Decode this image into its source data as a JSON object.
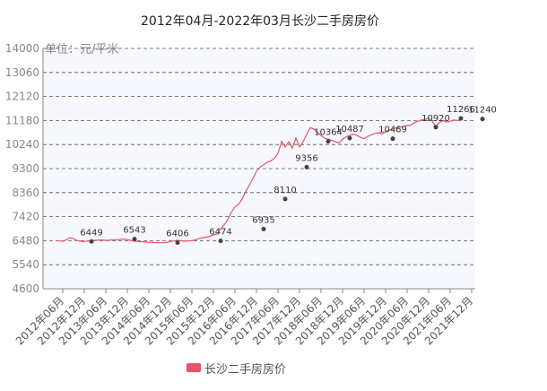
{
  "chart_data": {
    "type": "line",
    "title": "2012年04月-2022年03月长沙二手房房价",
    "unit_label": "单位：元/平米",
    "ylim": [
      4600,
      14000
    ],
    "y_ticks": [
      4600,
      5540,
      6480,
      7420,
      8360,
      9300,
      10240,
      11180,
      12120,
      13060,
      14000
    ],
    "x_tick_labels": [
      "2012年06月",
      "2012年12月",
      "2013年06月",
      "2013年12月",
      "2014年06月",
      "2014年12月",
      "2015年06月",
      "2015年12月",
      "2016年06月",
      "2016年12月",
      "2017年06月",
      "2017年12月",
      "2018年06月",
      "2018年12月",
      "2019年06月",
      "2019年12月",
      "2020年06月",
      "2020年12月",
      "2021年06月",
      "2021年12月"
    ],
    "grid": true,
    "legend_position": "bottom",
    "series": [
      {
        "name": "长沙二手房房价",
        "color": "#e8526a",
        "monthly": [
          6480,
          6470,
          6460,
          6520,
          6600,
          6560,
          6490,
          6460,
          6449,
          6470,
          6490,
          6500,
          6500,
          6510,
          6490,
          6500,
          6510,
          6520,
          6530,
          6543,
          6520,
          6490,
          6460,
          6450,
          6440,
          6430,
          6420,
          6410,
          6406,
          6400,
          6400,
          6410,
          6450,
          6470,
          6500,
          6480,
          6460,
          6474,
          6480,
          6520,
          6560,
          6600,
          6620,
          6650,
          6700,
          6740,
          6935,
          7100,
          7300,
          7600,
          7800,
          7900,
          8110,
          8400,
          8650,
          8900,
          9200,
          9356,
          9450,
          9550,
          9600,
          9700,
          9900,
          10364,
          10150,
          10350,
          10100,
          10500,
          10150,
          10350,
          10650,
          10900,
          10850,
          10700,
          10600,
          10487,
          10450,
          10400,
          10350,
          10300,
          10450,
          10550,
          10600,
          10650,
          10600,
          10520,
          10469,
          10560,
          10620,
          10680,
          10700,
          10650,
          10750,
          10800,
          10850,
          10900,
          10920,
          10950,
          10980,
          11000,
          11100,
          11150,
          11200,
          11230,
          11266,
          11150,
          10950,
          11100,
          11180,
          11120,
          11150,
          11200,
          11180,
          11240
        ],
        "labeled_points": [
          {
            "x": "2013年02月",
            "y": 6449
          },
          {
            "x": "2014年02月",
            "y": 6543
          },
          {
            "x": "2015年02月",
            "y": 6406
          },
          {
            "x": "2016年02月",
            "y": 6474
          },
          {
            "x": "2017年02月",
            "y": 6935
          },
          {
            "x": "2017年08月",
            "y": 8110
          },
          {
            "x": "2018年02月",
            "y": 9356
          },
          {
            "x": "2018年08月",
            "y": 10364
          },
          {
            "x": "2019年02月",
            "y": 10487
          },
          {
            "x": "2020年02月",
            "y": 10469
          },
          {
            "x": "2021年02月",
            "y": 10920
          },
          {
            "x": "2021年09月",
            "y": 11266
          },
          {
            "x": "2022年03月",
            "y": 11240
          }
        ]
      }
    ]
  }
}
